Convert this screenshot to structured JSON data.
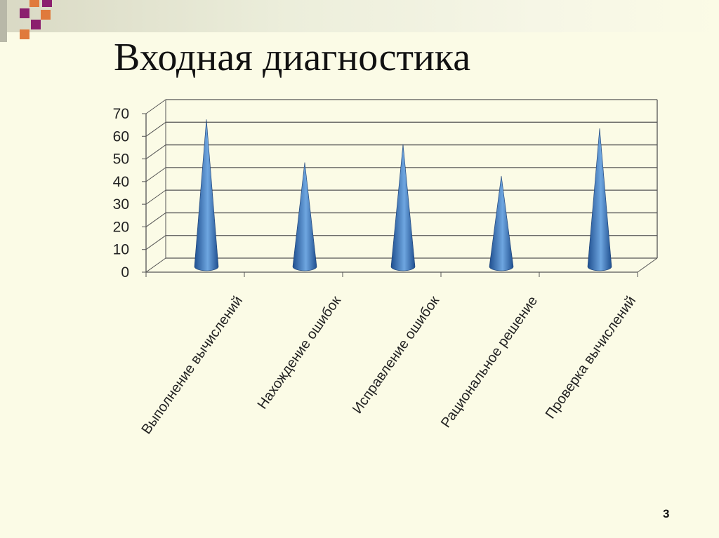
{
  "slide": {
    "title": "Входная диагностика",
    "page_number": "3"
  },
  "colors": {
    "background": "#fbfbe6",
    "deco_purple": "#8b1f6e",
    "deco_orange": "#e07a3c",
    "cone_dark": "#1f4f8f",
    "cone_light": "#6ea6e0",
    "grid": "#555555"
  },
  "chart_data": {
    "type": "bar",
    "shape": "cone-3d",
    "categories": [
      "Выполнение вычислений",
      "Нахождение ошибок",
      "Исправление ошибок",
      "Рациональное решение",
      "Проверка вычислений"
    ],
    "values": [
      65,
      46,
      54,
      40,
      61
    ],
    "ylim": [
      0,
      70
    ],
    "yticks": [
      "0",
      "10",
      "20",
      "30",
      "40",
      "50",
      "60",
      "70"
    ],
    "grid": true,
    "legend": "none"
  }
}
